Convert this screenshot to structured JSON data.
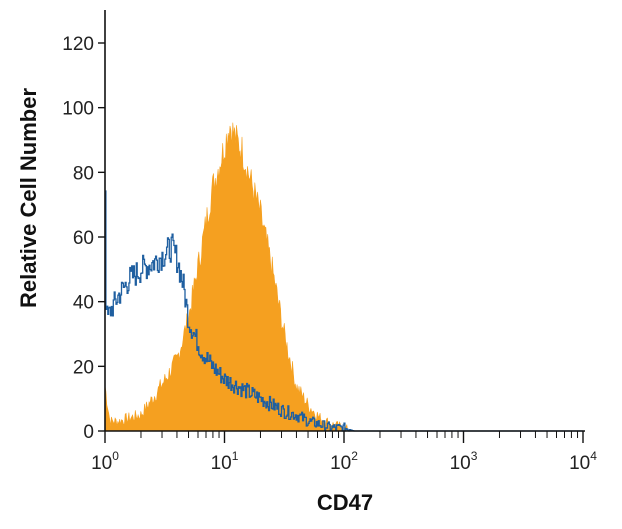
{
  "chart_data": {
    "type": "area",
    "title": "",
    "xlabel": "CD47",
    "ylabel": "Relative Cell Number",
    "x_scale": "log10",
    "xlim": [
      1,
      10000
    ],
    "ylim": [
      0,
      130
    ],
    "y_ticks": [
      "0",
      "20",
      "40",
      "60",
      "80",
      "100",
      "120"
    ],
    "x_tick_labels": [
      {
        "base": "10",
        "exp": "0"
      },
      {
        "base": "10",
        "exp": "1"
      },
      {
        "base": "10",
        "exp": "2"
      },
      {
        "base": "10",
        "exp": "3"
      },
      {
        "base": "10",
        "exp": "4"
      }
    ],
    "grid": false,
    "series": [
      {
        "style": "filled",
        "color": "#F5A020",
        "x": [
          1,
          1.1,
          1.3,
          1.6,
          2,
          2.5,
          3.2,
          4,
          5,
          6.3,
          7.9,
          10,
          11,
          12.6,
          14,
          15.8,
          20,
          25.1,
          31.6,
          39.8,
          50.1,
          63.1,
          79.4,
          100,
          120,
          1000,
          10000
        ],
        "y": [
          14,
          3,
          3,
          4,
          5,
          10,
          16,
          22,
          35,
          55,
          75,
          88,
          95,
          90,
          87,
          80,
          67,
          50,
          30,
          14,
          8,
          4,
          2,
          1,
          0,
          0,
          0
        ]
      },
      {
        "style": "line",
        "color": "#1F5FA0",
        "x": [
          1,
          1.02,
          1.05,
          1.1,
          1.3,
          1.6,
          2,
          2.5,
          3.2,
          3.6,
          4,
          4.5,
          5,
          6.3,
          7.9,
          10,
          12.6,
          15.8,
          20,
          25.1,
          31.6,
          39.8,
          50.1,
          63.1,
          79.4,
          100,
          120,
          1000,
          10000
        ],
        "y": [
          76,
          36,
          35,
          37,
          42,
          47,
          50,
          52,
          55,
          57,
          53,
          45,
          34,
          25,
          20,
          16,
          14,
          12,
          10,
          8,
          6,
          5,
          3,
          2,
          1,
          1,
          0,
          0,
          0
        ]
      }
    ]
  }
}
